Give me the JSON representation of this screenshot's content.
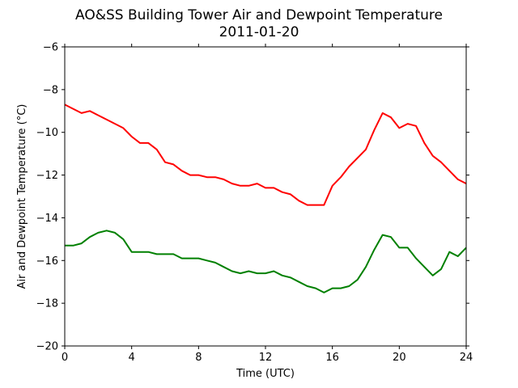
{
  "chart_data": {
    "type": "line",
    "title": "AO&SS Building Tower Air and Dewpoint Temperature",
    "subtitle": "2011-01-20",
    "xlabel": "Time (UTC)",
    "ylabel": "Air and Dewpoint Temperature (°C)",
    "xlim": [
      0,
      24
    ],
    "ylim": [
      -20,
      -6
    ],
    "xticks": [
      0,
      4,
      8,
      12,
      16,
      20,
      24
    ],
    "yticks": [
      -20,
      -18,
      -16,
      -14,
      -12,
      -10,
      -8,
      -6
    ],
    "grid": false,
    "legend": "none",
    "x": [
      0.0,
      0.5,
      1.0,
      1.5,
      2.0,
      2.5,
      3.0,
      3.5,
      4.0,
      4.5,
      5.0,
      5.5,
      6.0,
      6.5,
      7.0,
      7.5,
      8.0,
      8.5,
      9.0,
      9.5,
      10.0,
      10.5,
      11.0,
      11.5,
      12.0,
      12.5,
      13.0,
      13.5,
      14.0,
      14.5,
      15.0,
      15.5,
      16.0,
      16.5,
      17.0,
      17.5,
      18.0,
      18.5,
      19.0,
      19.5,
      20.0,
      20.5,
      21.0,
      21.5,
      22.0,
      22.5,
      23.0,
      23.5,
      24.0
    ],
    "series": [
      {
        "color": "#ff0000",
        "values": [
          -8.7,
          -8.9,
          -9.1,
          -9.0,
          -9.2,
          -9.4,
          -9.6,
          -9.8,
          -10.2,
          -10.5,
          -10.5,
          -10.8,
          -11.4,
          -11.5,
          -11.8,
          -12.0,
          -12.0,
          -12.1,
          -12.1,
          -12.2,
          -12.4,
          -12.5,
          -12.5,
          -12.4,
          -12.6,
          -12.6,
          -12.8,
          -12.9,
          -13.2,
          -13.4,
          -13.4,
          -13.4,
          -12.5,
          -12.1,
          -11.6,
          -11.2,
          -10.8,
          -9.9,
          -9.1,
          -9.3,
          -9.8,
          -9.6,
          -9.7,
          -10.5,
          -11.1,
          -11.4,
          -11.8,
          -12.2,
          -12.4
        ]
      },
      {
        "color": "#008000",
        "values": [
          -15.3,
          -15.3,
          -15.2,
          -14.9,
          -14.7,
          -14.6,
          -14.7,
          -15.0,
          -15.6,
          -15.6,
          -15.6,
          -15.7,
          -15.7,
          -15.7,
          -15.9,
          -15.9,
          -15.9,
          -16.0,
          -16.1,
          -16.3,
          -16.5,
          -16.6,
          -16.5,
          -16.6,
          -16.6,
          -16.5,
          -16.7,
          -16.8,
          -17.0,
          -17.2,
          -17.3,
          -17.5,
          -17.3,
          -17.3,
          -17.2,
          -16.9,
          -16.3,
          -15.5,
          -14.8,
          -14.9,
          -15.4,
          -15.4,
          -15.9,
          -16.3,
          -16.7,
          -16.4,
          -15.6,
          -15.8,
          -15.4
        ]
      }
    ]
  }
}
